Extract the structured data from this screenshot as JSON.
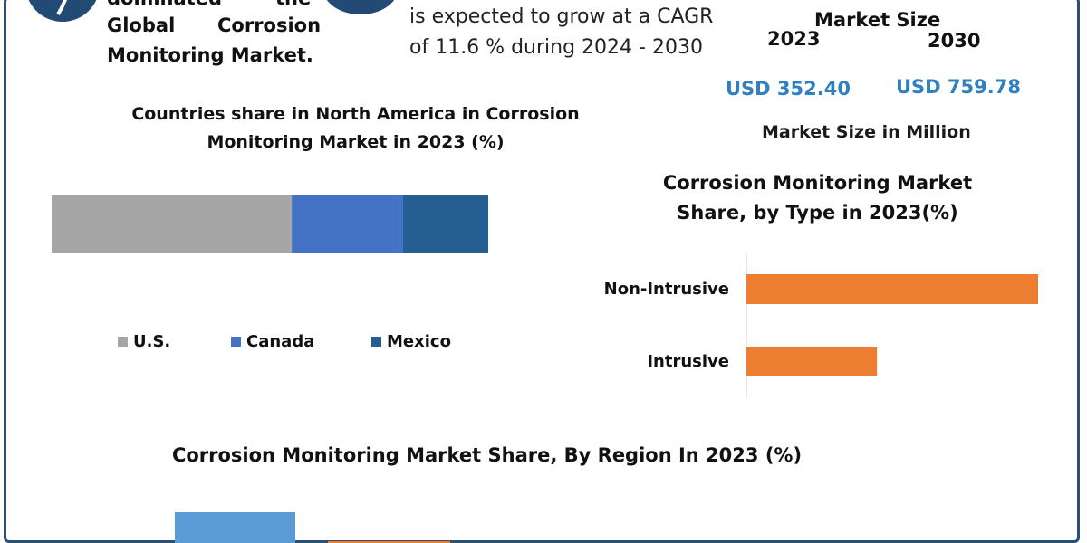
{
  "header": {
    "left_line1_a": "dominated",
    "left_line1_b": "the",
    "left_line2_a": "Global",
    "left_line2_b": "Corrosion",
    "left_line3": "Monitoring Market.",
    "cagr_line1": "is expected to grow at a CAGR",
    "cagr_line2": "of 11.6 % during 2024 - 2030",
    "market_size_label": "Market Size",
    "year_2023": "2023",
    "year_2030": "2030",
    "value_2023": "USD 352.40",
    "value_2030": "USD 759.78",
    "unit_label": "Market Size in Million"
  },
  "colors": {
    "frame": "#2c4f73",
    "logo": "#234a74",
    "us": "#a6a6a6",
    "canada": "#4472c4",
    "mexico": "#255e91",
    "type_bar": "#ed7d31",
    "region_blue": "#5b9bd5",
    "region_orange": "#ed7d31",
    "usd_text": "#2f7fc1"
  },
  "chart_data": [
    {
      "type": "bar",
      "orientation": "horizontal-stacked",
      "title_line1": "Countries share in North America in Corrosion",
      "title_line2": "Monitoring Market in 2023 (%)",
      "series": [
        {
          "name": "U.S.",
          "values": [
            55
          ]
        },
        {
          "name": "Canada",
          "values": [
            25.5
          ]
        },
        {
          "name": "Mexico",
          "values": [
            19.5
          ]
        }
      ],
      "xlim": [
        0,
        100
      ],
      "legend": "bottom"
    },
    {
      "type": "bar",
      "orientation": "horizontal",
      "title_line1": "Corrosion Monitoring Market",
      "title_line2": "Share, by Type in 2023(%)",
      "categories": [
        "Non-Intrusive",
        "Intrusive"
      ],
      "values": [
        67,
        30
      ],
      "xlim": [
        0,
        67
      ]
    },
    {
      "type": "bar",
      "orientation": "vertical",
      "title": "Corrosion Monitoring Market Share, By Region In 2023 (%)",
      "values": [
        38,
        6
      ],
      "ylim": [
        0,
        38
      ]
    }
  ]
}
